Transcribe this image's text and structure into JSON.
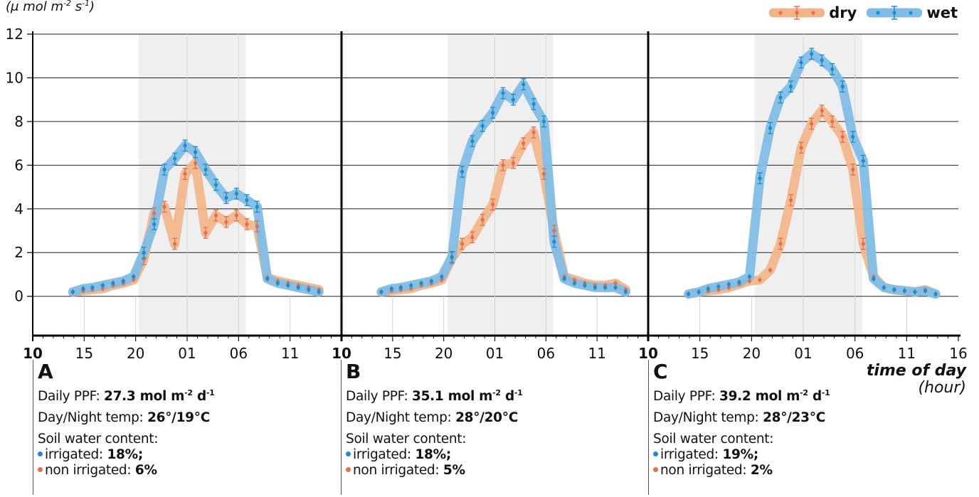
{
  "header": {
    "ylabel_unit": "(μ mol m",
    "ylabel_exp1": "-2",
    "ylabel_mid": " s",
    "ylabel_exp2": "-1",
    "ylabel_end": ")"
  },
  "legend": [
    {
      "label": "dry",
      "color": "#f2b58a",
      "dot": "#e07050"
    },
    {
      "label": "wet",
      "color": "#7fbde6",
      "dot": "#1d8cc9"
    }
  ],
  "x_title": {
    "main": "time of day",
    "sub": "(hour)"
  },
  "colors": {
    "dry_band": "#f2b58a",
    "dry_point": "#e07050",
    "wet_band": "#7fbde6",
    "wet_point": "#1d8cc9",
    "night_shade": "#efefef"
  },
  "chart_data": [
    {
      "panel": "A",
      "type": "line",
      "x_ticks": [
        "10",
        "15",
        "20",
        "01",
        "06",
        "11"
      ],
      "y_ticks": [
        "0",
        "2",
        "4",
        "6",
        "8",
        "10",
        "12"
      ],
      "ylim": [
        -1.8,
        12
      ],
      "night_shade_hours": [
        20.3,
        30.7
      ],
      "series": [
        {
          "name": "dry",
          "x": [
            13.9,
            14.9,
            15.8,
            16.8,
            17.8,
            18.8,
            19.8,
            20.8,
            21.8,
            22.8,
            23.8,
            24.8,
            25.8,
            26.8,
            27.8,
            28.8,
            29.8,
            30.8,
            31.8,
            32.8,
            33.8,
            34.8,
            35.8,
            36.8,
            37.8
          ],
          "y": [
            0.2,
            0.25,
            0.3,
            0.35,
            0.5,
            0.6,
            0.75,
            1.7,
            3.8,
            4.1,
            2.4,
            5.6,
            6.1,
            2.9,
            3.7,
            3.4,
            3.7,
            3.3,
            3.2,
            0.85,
            0.7,
            0.6,
            0.5,
            0.4,
            0.3
          ]
        },
        {
          "name": "wet",
          "x": [
            13.9,
            14.9,
            15.8,
            16.8,
            17.8,
            18.8,
            19.8,
            20.8,
            21.8,
            22.8,
            23.8,
            24.8,
            25.8,
            26.8,
            27.8,
            28.8,
            29.8,
            30.8,
            31.8,
            32.8,
            33.8,
            34.8,
            35.8,
            36.8,
            37.8
          ],
          "y": [
            0.2,
            0.35,
            0.4,
            0.5,
            0.6,
            0.7,
            0.9,
            2.0,
            3.3,
            5.8,
            6.3,
            6.9,
            6.6,
            5.8,
            5.1,
            4.5,
            4.7,
            4.4,
            4.1,
            0.8,
            0.6,
            0.5,
            0.4,
            0.3,
            0.2
          ]
        }
      ],
      "info": {
        "letter": "A",
        "ppf_label": "Daily PPF: ",
        "ppf_value": "27.3 mol m",
        "ppf_exp1": "-2",
        "ppf_mid": " d",
        "ppf_exp2": "-1",
        "temp_label": "Day/Night temp: ",
        "temp_value": "26°/19°C",
        "soil_label": "Soil water content:",
        "irrigated_label": "irrigated: ",
        "irrigated_value": "18%;",
        "non_irrigated_label": "non irrigated: ",
        "non_irrigated_value": "6%"
      }
    },
    {
      "panel": "B",
      "type": "line",
      "x_ticks": [
        "10",
        "15",
        "20",
        "01",
        "06",
        "11"
      ],
      "y_ticks": [],
      "ylim": [
        -1.8,
        12
      ],
      "night_shade_hours": [
        20.4,
        30.7
      ],
      "series": [
        {
          "name": "dry",
          "x": [
            13.9,
            14.9,
            15.8,
            16.8,
            17.8,
            18.8,
            19.8,
            20.8,
            21.8,
            22.8,
            23.8,
            24.8,
            25.8,
            26.8,
            27.8,
            28.8,
            29.8,
            30.8,
            31.8,
            32.8,
            33.8,
            34.8,
            35.8,
            36.8,
            37.8
          ],
          "y": [
            0.2,
            0.25,
            0.3,
            0.35,
            0.5,
            0.6,
            0.75,
            1.75,
            2.4,
            2.7,
            3.5,
            4.2,
            6.0,
            6.1,
            7.0,
            7.5,
            5.6,
            3.0,
            0.9,
            0.75,
            0.6,
            0.5,
            0.5,
            0.6,
            0.3
          ]
        },
        {
          "name": "wet",
          "x": [
            13.9,
            14.9,
            15.8,
            16.8,
            17.8,
            18.8,
            19.8,
            20.8,
            21.8,
            22.8,
            23.8,
            24.8,
            25.8,
            26.8,
            27.8,
            28.8,
            29.8,
            30.8,
            31.8,
            32.8,
            33.8,
            34.8,
            35.8,
            36.8,
            37.8
          ],
          "y": [
            0.2,
            0.35,
            0.4,
            0.5,
            0.6,
            0.7,
            0.9,
            1.8,
            5.7,
            7.1,
            7.8,
            8.4,
            9.3,
            9.0,
            9.7,
            8.8,
            8.0,
            2.5,
            0.8,
            0.6,
            0.5,
            0.4,
            0.4,
            0.4,
            0.2
          ]
        }
      ],
      "info": {
        "letter": "B",
        "ppf_label": "Daily PPF: ",
        "ppf_value": "35.1 mol m",
        "ppf_exp1": "-2",
        "ppf_mid": " d",
        "ppf_exp2": "-1",
        "temp_label": "Day/Night temp: ",
        "temp_value": "28°/20°C",
        "soil_label": "Soil water content:",
        "irrigated_label": "irrigated: ",
        "irrigated_value": "18%;",
        "non_irrigated_label": "non irrigated: ",
        "non_irrigated_value": "5%"
      }
    },
    {
      "panel": "C",
      "type": "line",
      "x_ticks": [
        "10",
        "15",
        "20",
        "01",
        "06",
        "11",
        "16"
      ],
      "y_ticks": [],
      "ylim": [
        -1.8,
        12
      ],
      "night_shade_hours": [
        20.3,
        30.7
      ],
      "series": [
        {
          "name": "dry",
          "x": [
            13.9,
            14.9,
            15.8,
            16.8,
            17.8,
            18.8,
            19.8,
            20.8,
            21.8,
            22.8,
            23.8,
            24.8,
            25.8,
            26.8,
            27.8,
            28.8,
            29.8,
            30.8,
            31.8,
            32.8,
            33.8,
            34.8,
            35.8,
            36.8,
            37.8
          ],
          "y": [
            0.1,
            0.2,
            0.25,
            0.3,
            0.4,
            0.55,
            0.7,
            0.75,
            1.2,
            2.4,
            4.4,
            6.8,
            7.9,
            8.5,
            8.0,
            7.3,
            5.8,
            2.4,
            0.9,
            0.4,
            0.3,
            0.25,
            0.2,
            0.3,
            0.1
          ]
        },
        {
          "name": "wet",
          "x": [
            13.9,
            14.9,
            15.8,
            16.8,
            17.8,
            18.8,
            19.8,
            20.8,
            21.8,
            22.8,
            23.8,
            24.8,
            25.8,
            26.8,
            27.8,
            28.8,
            29.8,
            30.8,
            31.8,
            32.8,
            33.8,
            34.8,
            35.8,
            36.8,
            37.8
          ],
          "y": [
            0.1,
            0.2,
            0.35,
            0.45,
            0.55,
            0.65,
            0.9,
            5.4,
            7.7,
            9.1,
            9.6,
            10.7,
            11.1,
            10.8,
            10.4,
            9.6,
            7.3,
            6.2,
            0.8,
            0.4,
            0.3,
            0.25,
            0.2,
            0.25,
            0.1
          ]
        }
      ],
      "info": {
        "letter": "C",
        "ppf_label": "Daily PPF: ",
        "ppf_value": "39.2 mol m",
        "ppf_exp1": "-2",
        "ppf_mid": " d",
        "ppf_exp2": "-1",
        "temp_label": "Day/Night temp: ",
        "temp_value": "28°/23°C",
        "soil_label": "Soil water content:",
        "irrigated_label": "irrigated: ",
        "irrigated_value": "19%;",
        "non_irrigated_label": "non irrigated: ",
        "non_irrigated_value": "2%"
      }
    }
  ]
}
